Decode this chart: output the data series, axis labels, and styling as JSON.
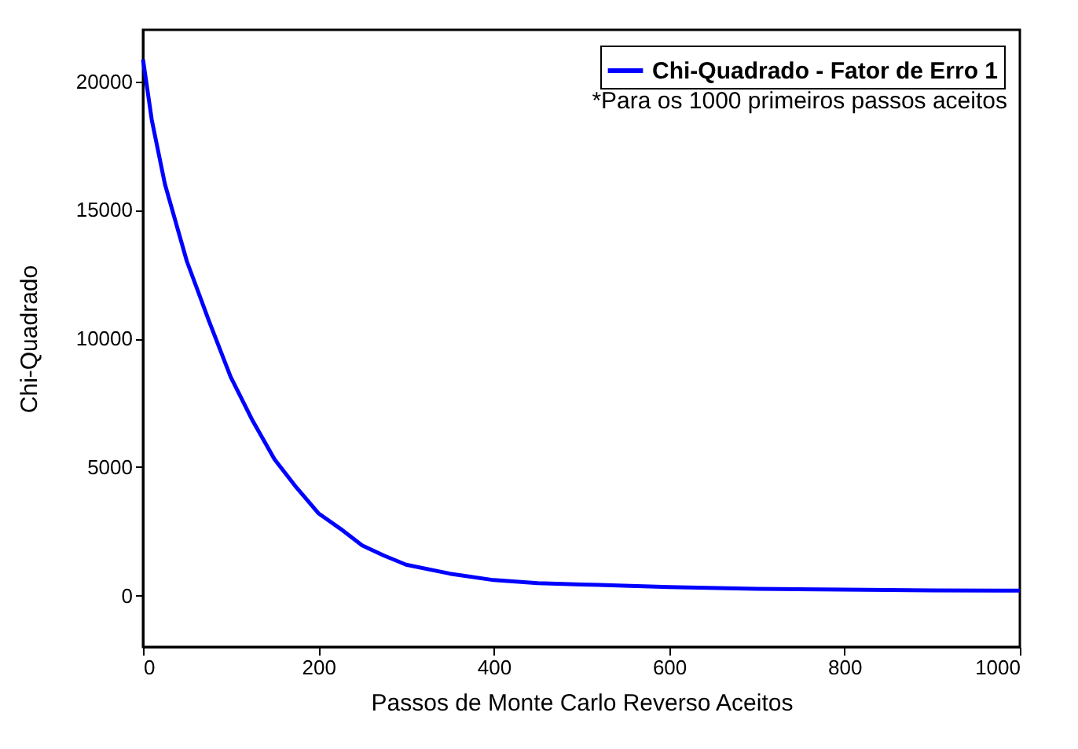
{
  "chart_data": {
    "type": "line",
    "xlabel": "Passos de Monte Carlo Reverso Aceitos",
    "ylabel": "Chi-Quadrado",
    "x": [
      0,
      10,
      25,
      50,
      75,
      100,
      125,
      150,
      175,
      200,
      225,
      250,
      275,
      300,
      350,
      400,
      450,
      500,
      600,
      700,
      800,
      900,
      1000
    ],
    "series": [
      {
        "name": "Chi-Quadrado - Fator de Erro 1",
        "color": "#0000ff",
        "values": [
          20850,
          18500,
          16000,
          13000,
          10700,
          8500,
          6800,
          5300,
          4200,
          3200,
          2600,
          1950,
          1550,
          1200,
          850,
          600,
          480,
          430,
          330,
          260,
          230,
          200,
          190
        ]
      }
    ],
    "annotations": [
      "*Para os 1000 primeiros passos aceitos"
    ],
    "xlim": [
      0,
      1000
    ],
    "xticks": [
      0,
      200,
      400,
      600,
      800,
      1000
    ],
    "ylim": [
      -2000,
      22000
    ],
    "yticks": [
      0,
      5000,
      10000,
      15000,
      20000
    ],
    "legend": "top right",
    "line_style": "solid"
  }
}
